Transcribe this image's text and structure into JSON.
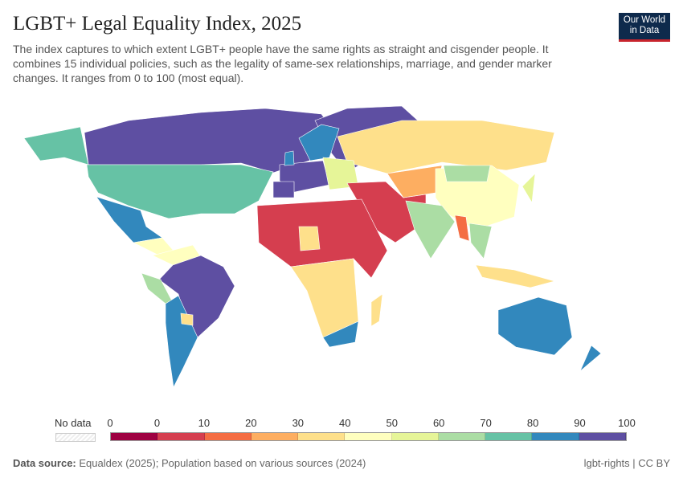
{
  "header": {
    "title": "LGBT+ Legal Equality Index, 2025",
    "subtitle": "The index captures to which extent LGBT+ people have the same rights as straight and cisgender people. It combines 15 individual policies, such as the legality of same-sex relationships, marriage, and gender marker changes. It ranges from 0 to 100 (most equal).",
    "logo": "Our World in Data"
  },
  "legend": {
    "no_data": "No data",
    "ticks": [
      "0",
      "0",
      "10",
      "20",
      "30",
      "40",
      "50",
      "60",
      "70",
      "80",
      "90",
      "100"
    ],
    "colors": [
      "#9e0142",
      "#d53e4f",
      "#f46d43",
      "#fdae61",
      "#fee08b",
      "#ffffbf",
      "#e6f598",
      "#abdda4",
      "#66c2a5",
      "#3288bd",
      "#5e4fa2"
    ]
  },
  "footer": {
    "source_label": "Data source:",
    "source": "Equaldex (2025); Population based on various sources (2024)",
    "license": "lgbt-rights | CC BY"
  }
}
